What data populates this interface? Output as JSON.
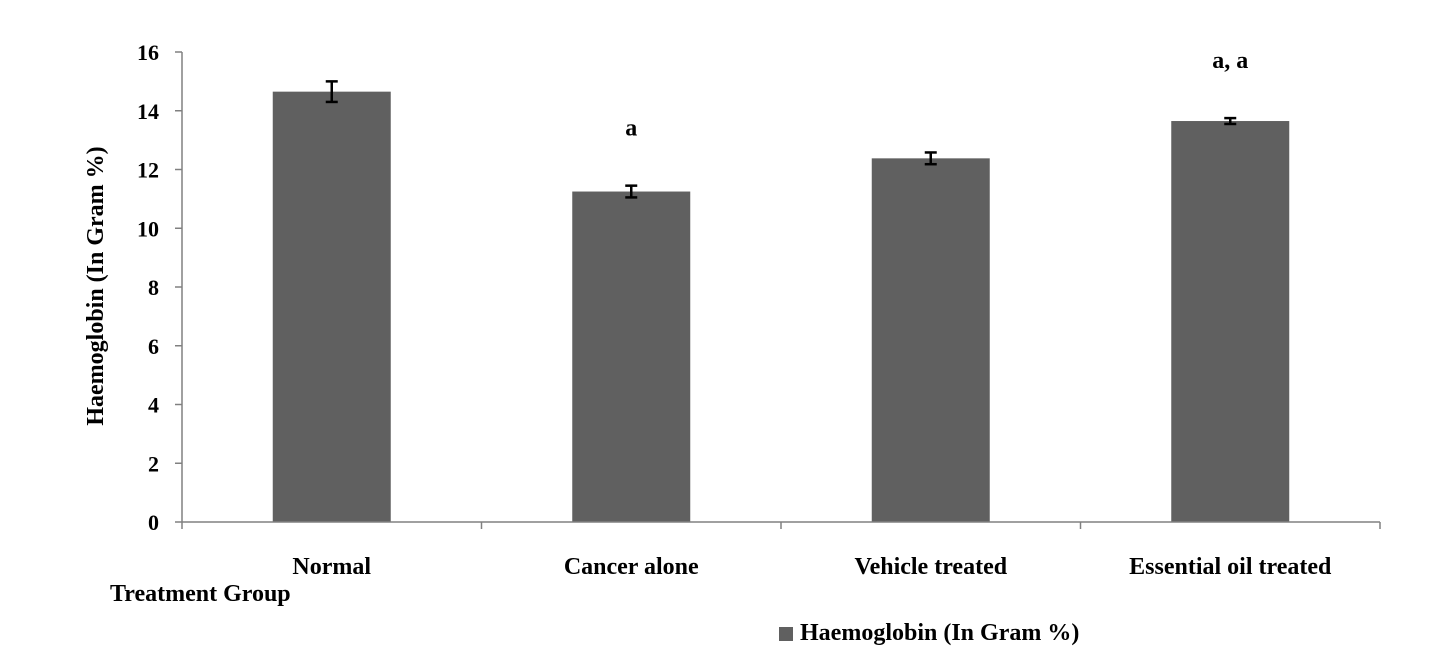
{
  "chart_data": {
    "type": "bar",
    "categories": [
      "Normal",
      "Cancer alone",
      "Vehicle treated",
      "Essential oil treated"
    ],
    "series": [
      {
        "name": "Haemoglobin (In Gram %)",
        "values": [
          14.65,
          11.25,
          12.38,
          13.65
        ],
        "errors": [
          0.35,
          0.2,
          0.2,
          0.1
        ],
        "color": "#606060"
      }
    ],
    "annotations": [
      "",
      "a",
      "",
      "a, a"
    ],
    "xlabel": "Treatment Group",
    "ylabel": "Haemoglobin (In Gram %)",
    "ylim": [
      0,
      16
    ],
    "yticks": [
      0,
      2,
      4,
      6,
      8,
      10,
      12,
      14,
      16
    ],
    "grid": false,
    "legend_position": "bottom"
  }
}
